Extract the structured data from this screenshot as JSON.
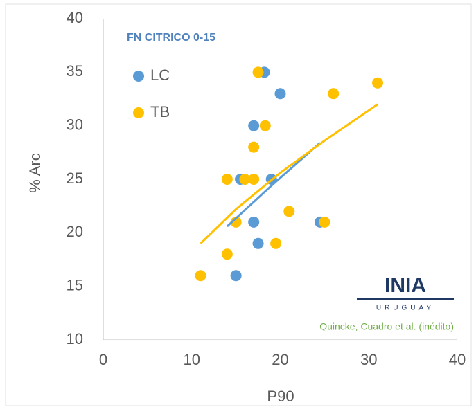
{
  "chart_data": {
    "type": "scatter",
    "title": "FN CITRICO 0-15",
    "xlabel": "P90",
    "ylabel": "% Arc",
    "xlim": [
      0,
      40
    ],
    "xticks": [
      0,
      10,
      20,
      30,
      40
    ],
    "ylim": [
      10,
      40
    ],
    "yticks": [
      10,
      15,
      20,
      25,
      30,
      35,
      40
    ],
    "grid": false,
    "legend": "upper left",
    "logo_text": "INIA",
    "logo_subtext": "URUGUAY",
    "source": "Quincke, Cuadro et al. (inédito)",
    "series": [
      {
        "name": "LC",
        "color": "#5b9bd5",
        "x": [
          18.2,
          20,
          17,
          15.5,
          19,
          17,
          24.5,
          17.5,
          15
        ],
        "values": [
          35,
          33,
          30,
          25,
          25,
          21,
          21,
          19,
          16
        ],
        "trend": {
          "x": [
            14,
            19,
            24.5
          ],
          "y": [
            20.6,
            24.4,
            28.4
          ]
        }
      },
      {
        "name": "TB",
        "color": "#ffc000",
        "x": [
          17.5,
          26,
          31,
          18.3,
          17,
          14,
          16,
          17,
          15,
          21,
          25,
          14,
          19.5,
          11
        ],
        "values": [
          35,
          33,
          34,
          30,
          28,
          25,
          25,
          25,
          21,
          22,
          21,
          18,
          19,
          16
        ],
        "trend": {
          "x": [
            11,
            15,
            20,
            25,
            31
          ],
          "y": [
            19,
            22.2,
            25.6,
            28.6,
            32
          ]
        }
      }
    ]
  }
}
